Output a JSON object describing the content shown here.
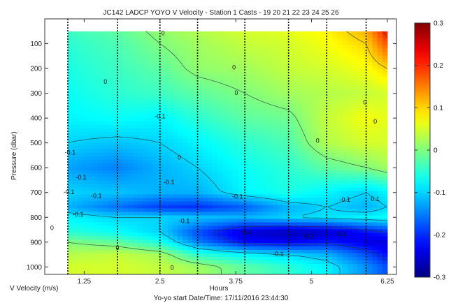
{
  "chart_data": {
    "type": "heatmap",
    "title": "JC142 LADCP YOYO  V Velocity - Station 1 Casts - 19  20  21  22  23  24  25  26",
    "xlabel": "Hours",
    "ylabel": "Pressure (dbar)",
    "colorbar_label": "V Velocity (m/s)",
    "footer": "Yo-yo start Date/Time: 17/11/2016 23:44:30",
    "xlim": [
      0.6,
      6.4
    ],
    "ylim": [
      0,
      1030
    ],
    "y_reversed": true,
    "x_ticks": [
      "1.25",
      "2.5",
      "3.75",
      "5",
      "6.25"
    ],
    "x_tick_values": [
      1.25,
      2.5,
      3.75,
      5,
      6.25
    ],
    "y_ticks": [
      "100",
      "200",
      "300",
      "400",
      "500",
      "600",
      "700",
      "800",
      "900",
      "1000"
    ],
    "y_tick_values": [
      100,
      200,
      300,
      400,
      500,
      600,
      700,
      800,
      900,
      1000
    ],
    "color_range": [
      -0.3,
      0.3
    ],
    "colorbar_ticks": [
      "0.3",
      "0.2",
      "0.1",
      "0",
      "-0.1",
      "-0.2",
      "-0.3"
    ],
    "colorbar_tick_values": [
      0.3,
      0.2,
      0.1,
      0,
      -0.1,
      -0.2,
      -0.3
    ],
    "colormap": "jet",
    "cast_times_hours": [
      0.98,
      1.8,
      2.5,
      3.12,
      3.9,
      4.62,
      5.25,
      5.9
    ],
    "x": [
      0.98,
      1.8,
      2.5,
      3.12,
      3.9,
      4.62,
      5.25,
      5.9,
      6.25
    ],
    "y": [
      50,
      100,
      200,
      300,
      400,
      500,
      600,
      700,
      760,
      800,
      860,
      900,
      950,
      1000
    ],
    "z": [
      [
        -0.04,
        -0.02,
        0.01,
        0.03,
        0.05,
        0.06,
        0.08,
        0.12,
        0.22
      ],
      [
        -0.05,
        -0.03,
        0.0,
        0.02,
        0.04,
        0.05,
        0.07,
        0.1,
        0.18
      ],
      [
        -0.06,
        -0.04,
        -0.02,
        0.01,
        0.02,
        0.04,
        0.05,
        0.07,
        0.1
      ],
      [
        -0.07,
        -0.05,
        -0.04,
        -0.02,
        0.0,
        0.02,
        0.03,
        0.04,
        0.05
      ],
      [
        -0.08,
        -0.07,
        -0.08,
        -0.05,
        -0.02,
        -0.01,
        0.04,
        0.07,
        0.06
      ],
      [
        -0.1,
        -0.11,
        -0.1,
        -0.08,
        -0.05,
        -0.03,
        0.03,
        0.05,
        0.05
      ],
      [
        -0.13,
        -0.15,
        -0.12,
        -0.1,
        -0.07,
        -0.05,
        -0.02,
        0.0,
        0.02
      ],
      [
        -0.1,
        -0.11,
        -0.12,
        -0.12,
        -0.08,
        -0.06,
        -0.08,
        -0.1,
        -0.08
      ],
      [
        -0.12,
        -0.16,
        -0.19,
        -0.2,
        -0.17,
        -0.12,
        -0.1,
        -0.12,
        -0.1
      ],
      [
        -0.08,
        -0.1,
        -0.1,
        -0.11,
        -0.12,
        -0.1,
        -0.09,
        -0.08,
        -0.07
      ],
      [
        -0.05,
        -0.07,
        -0.1,
        -0.18,
        -0.25,
        -0.27,
        -0.26,
        -0.22,
        -0.2
      ],
      [
        0.0,
        -0.02,
        -0.06,
        -0.15,
        -0.22,
        -0.23,
        -0.21,
        -0.24,
        -0.25
      ],
      [
        0.03,
        0.04,
        0.02,
        -0.05,
        -0.08,
        -0.1,
        -0.12,
        -0.18,
        -0.22
      ],
      [
        0.05,
        0.05,
        0.04,
        0.02,
        -0.02,
        -0.05,
        -0.08,
        -0.14,
        -0.18
      ]
    ],
    "contour_labels": [
      {
        "text": "0",
        "x": 2.55,
        "y": 60
      },
      {
        "text": "0",
        "x": 3.72,
        "y": 198
      },
      {
        "text": "0",
        "x": 1.6,
        "y": 255
      },
      {
        "text": "0",
        "x": 3.76,
        "y": 300
      },
      {
        "text": "0",
        "x": 5.88,
        "y": 338
      },
      {
        "text": "-0.1",
        "x": 2.5,
        "y": 395
      },
      {
        "text": "0",
        "x": 6.05,
        "y": 415
      },
      {
        "text": "0",
        "x": 5.1,
        "y": 493
      },
      {
        "text": "-0.1",
        "x": 1.02,
        "y": 540
      },
      {
        "text": "0",
        "x": 2.82,
        "y": 560
      },
      {
        "text": "-0.1",
        "x": 1.2,
        "y": 640
      },
      {
        "text": "-0.1",
        "x": 2.65,
        "y": 660
      },
      {
        "text": "-0.1",
        "x": 1.0,
        "y": 700
      },
      {
        "text": "-0.1",
        "x": 1.45,
        "y": 715
      },
      {
        "text": "-0.1",
        "x": 3.78,
        "y": 718
      },
      {
        "text": "-0.1",
        "x": 5.55,
        "y": 730
      },
      {
        "text": "0.1",
        "x": 6.05,
        "y": 728
      },
      {
        "text": "-0.1",
        "x": 1.15,
        "y": 790
      },
      {
        "text": "-0.1",
        "x": 2.9,
        "y": 816
      },
      {
        "text": "-0.2",
        "x": 3.92,
        "y": 860
      },
      {
        "text": "0",
        "x": 0.72,
        "y": 845
      },
      {
        "text": "-0.2",
        "x": 4.95,
        "y": 878
      },
      {
        "text": "0.2",
        "x": 5.5,
        "y": 868
      },
      {
        "text": "0",
        "x": 1.8,
        "y": 925
      },
      {
        "text": "-0.1",
        "x": 4.45,
        "y": 950
      },
      {
        "text": "0",
        "x": 2.7,
        "y": 1005
      }
    ]
  }
}
